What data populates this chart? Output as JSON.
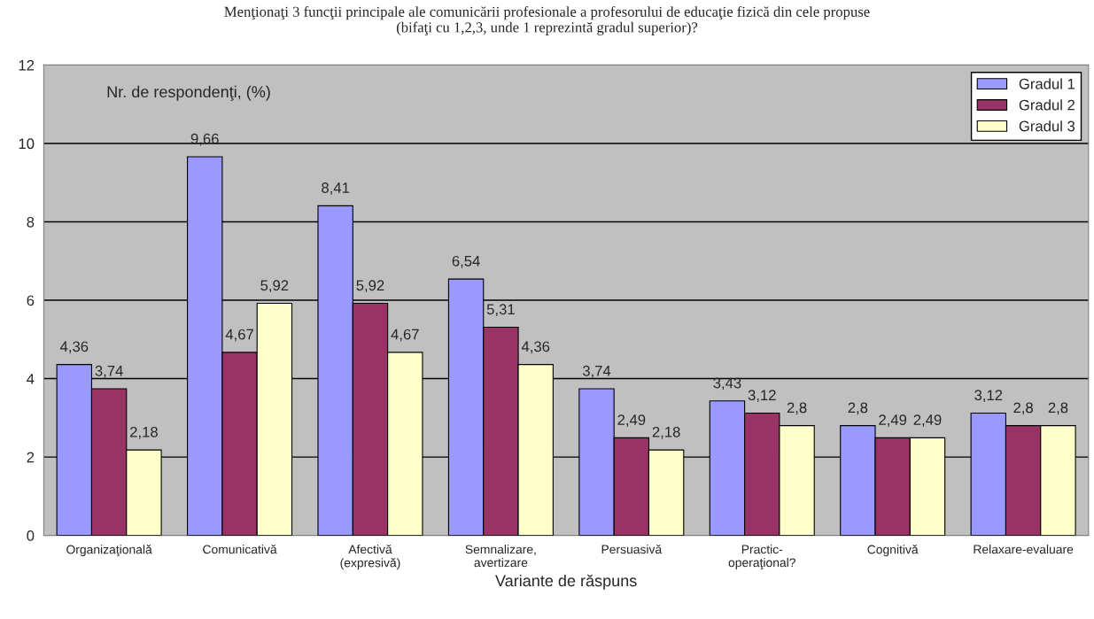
{
  "chart_data": {
    "type": "bar",
    "title": "Menţionaţi 3 funcţii principale ale comunicării profesionale a profesorului de educaţie fizică din cele propuse\n(bifaţi cu 1,2,3, unde 1 reprezintă gradul superior)?",
    "xlabel": "Variante de răspuns",
    "ylabel": "Nr. de respondenţi, (%)",
    "categories": [
      "Organizaţională",
      "Comunicativă",
      "Afectivă\n(expresivă)",
      "Semnalizare,\navertizare",
      "Persuasivă",
      "Practic-\noperaţional?",
      "Cognitivă",
      "Relaxare-evaluare"
    ],
    "series": [
      {
        "name": "Gradul 1",
        "color": "#9999ff",
        "values": [
          4.36,
          9.66,
          8.41,
          6.54,
          3.74,
          3.43,
          2.8,
          3.12
        ],
        "value_labels": [
          "4,36",
          "9,66",
          "8,41",
          "6,54",
          "3,74",
          "3,43",
          "2,8",
          "3,12"
        ]
      },
      {
        "name": "Gradul 2",
        "color": "#993366",
        "values": [
          3.74,
          4.67,
          5.92,
          5.31,
          2.49,
          3.12,
          2.49,
          2.8
        ],
        "value_labels": [
          "3,74",
          "4,67",
          "5,92",
          "5,31",
          "2,49",
          "3,12",
          "2,49",
          "2,8"
        ]
      },
      {
        "name": "Gradul 3",
        "color": "#ffffcc",
        "values": [
          2.18,
          5.92,
          4.67,
          4.36,
          2.18,
          2.8,
          2.49,
          2.8
        ],
        "value_labels": [
          "2,18",
          "5,92",
          "4,67",
          "4,36",
          "2,18",
          "2,8",
          "2,49",
          "2,8"
        ]
      }
    ],
    "ylim": [
      0,
      12
    ],
    "yticks": [
      0,
      2,
      4,
      6,
      8,
      10,
      12
    ],
    "grid": "y",
    "legend": "top right"
  }
}
